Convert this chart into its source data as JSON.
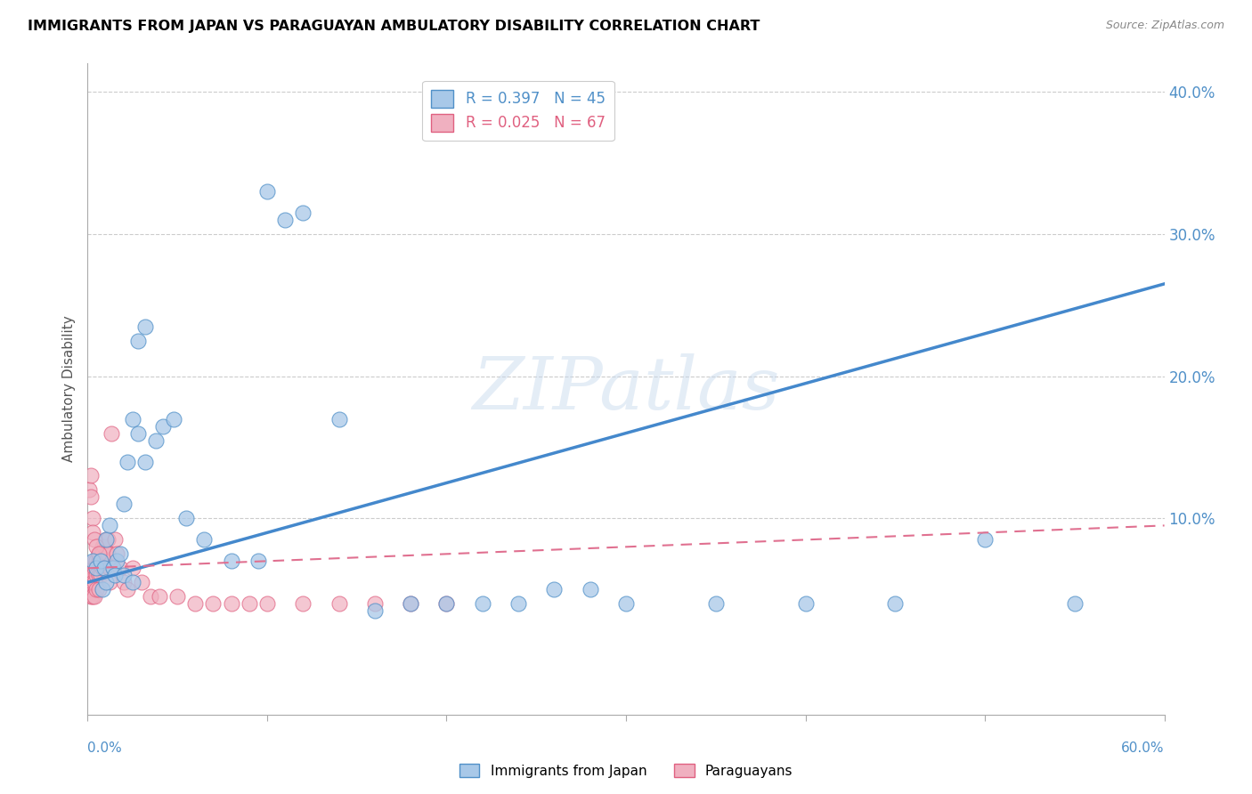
{
  "title": "IMMIGRANTS FROM JAPAN VS PARAGUAYAN AMBULATORY DISABILITY CORRELATION CHART",
  "source": "Source: ZipAtlas.com",
  "ylabel": "Ambulatory Disability",
  "xlim": [
    0.0,
    0.6
  ],
  "ylim": [
    -0.038,
    0.42
  ],
  "yticks": [
    0.1,
    0.2,
    0.3,
    0.4
  ],
  "ytick_labels": [
    "10.0%",
    "20.0%",
    "30.0%",
    "40.0%"
  ],
  "watermark": "ZIPatlas",
  "blue_fill": "#a8c8e8",
  "blue_edge": "#5090c8",
  "pink_fill": "#f0b0c0",
  "pink_edge": "#e06080",
  "blue_line": "#4488cc",
  "pink_line": "#e07090",
  "grid_color": "#cccccc",
  "tick_color": "#5090c8",
  "scatter_blue_x": [
    0.003,
    0.005,
    0.007,
    0.009,
    0.01,
    0.012,
    0.014,
    0.016,
    0.018,
    0.02,
    0.022,
    0.025,
    0.028,
    0.032,
    0.038,
    0.042,
    0.048,
    0.028,
    0.032,
    0.055,
    0.065,
    0.08,
    0.095,
    0.1,
    0.11,
    0.12,
    0.14,
    0.16,
    0.18,
    0.2,
    0.22,
    0.24,
    0.26,
    0.28,
    0.3,
    0.35,
    0.4,
    0.45,
    0.5,
    0.55,
    0.008,
    0.01,
    0.015,
    0.02,
    0.025
  ],
  "scatter_blue_y": [
    0.07,
    0.065,
    0.07,
    0.065,
    0.085,
    0.095,
    0.065,
    0.07,
    0.075,
    0.11,
    0.14,
    0.17,
    0.16,
    0.14,
    0.155,
    0.165,
    0.17,
    0.225,
    0.235,
    0.1,
    0.085,
    0.07,
    0.07,
    0.33,
    0.31,
    0.315,
    0.17,
    0.035,
    0.04,
    0.04,
    0.04,
    0.04,
    0.05,
    0.05,
    0.04,
    0.04,
    0.04,
    0.04,
    0.085,
    0.04,
    0.05,
    0.055,
    0.06,
    0.06,
    0.055
  ],
  "scatter_pink_x": [
    0.001,
    0.001,
    0.001,
    0.002,
    0.002,
    0.002,
    0.002,
    0.003,
    0.003,
    0.003,
    0.003,
    0.004,
    0.004,
    0.004,
    0.004,
    0.005,
    0.005,
    0.005,
    0.005,
    0.006,
    0.006,
    0.006,
    0.006,
    0.007,
    0.007,
    0.007,
    0.008,
    0.008,
    0.008,
    0.009,
    0.009,
    0.01,
    0.01,
    0.011,
    0.011,
    0.012,
    0.012,
    0.013,
    0.014,
    0.015,
    0.016,
    0.018,
    0.02,
    0.022,
    0.025,
    0.03,
    0.035,
    0.04,
    0.05,
    0.06,
    0.07,
    0.08,
    0.09,
    0.1,
    0.12,
    0.14,
    0.16,
    0.18,
    0.2,
    0.001,
    0.002,
    0.002,
    0.003,
    0.003,
    0.004,
    0.005,
    0.006
  ],
  "scatter_pink_y": [
    0.06,
    0.055,
    0.05,
    0.065,
    0.06,
    0.05,
    0.045,
    0.065,
    0.06,
    0.055,
    0.045,
    0.07,
    0.065,
    0.055,
    0.045,
    0.07,
    0.065,
    0.06,
    0.05,
    0.075,
    0.07,
    0.06,
    0.05,
    0.075,
    0.07,
    0.06,
    0.08,
    0.075,
    0.065,
    0.08,
    0.07,
    0.085,
    0.075,
    0.085,
    0.075,
    0.065,
    0.055,
    0.16,
    0.065,
    0.085,
    0.075,
    0.065,
    0.055,
    0.05,
    0.065,
    0.055,
    0.045,
    0.045,
    0.045,
    0.04,
    0.04,
    0.04,
    0.04,
    0.04,
    0.04,
    0.04,
    0.04,
    0.04,
    0.04,
    0.12,
    0.13,
    0.115,
    0.1,
    0.09,
    0.085,
    0.08,
    0.075
  ],
  "blue_line_x0": 0.0,
  "blue_line_x1": 0.6,
  "blue_line_y0": 0.055,
  "blue_line_y1": 0.265,
  "pink_line_x0": 0.0,
  "pink_line_x1": 0.6,
  "pink_line_y0": 0.065,
  "pink_line_y1": 0.095
}
